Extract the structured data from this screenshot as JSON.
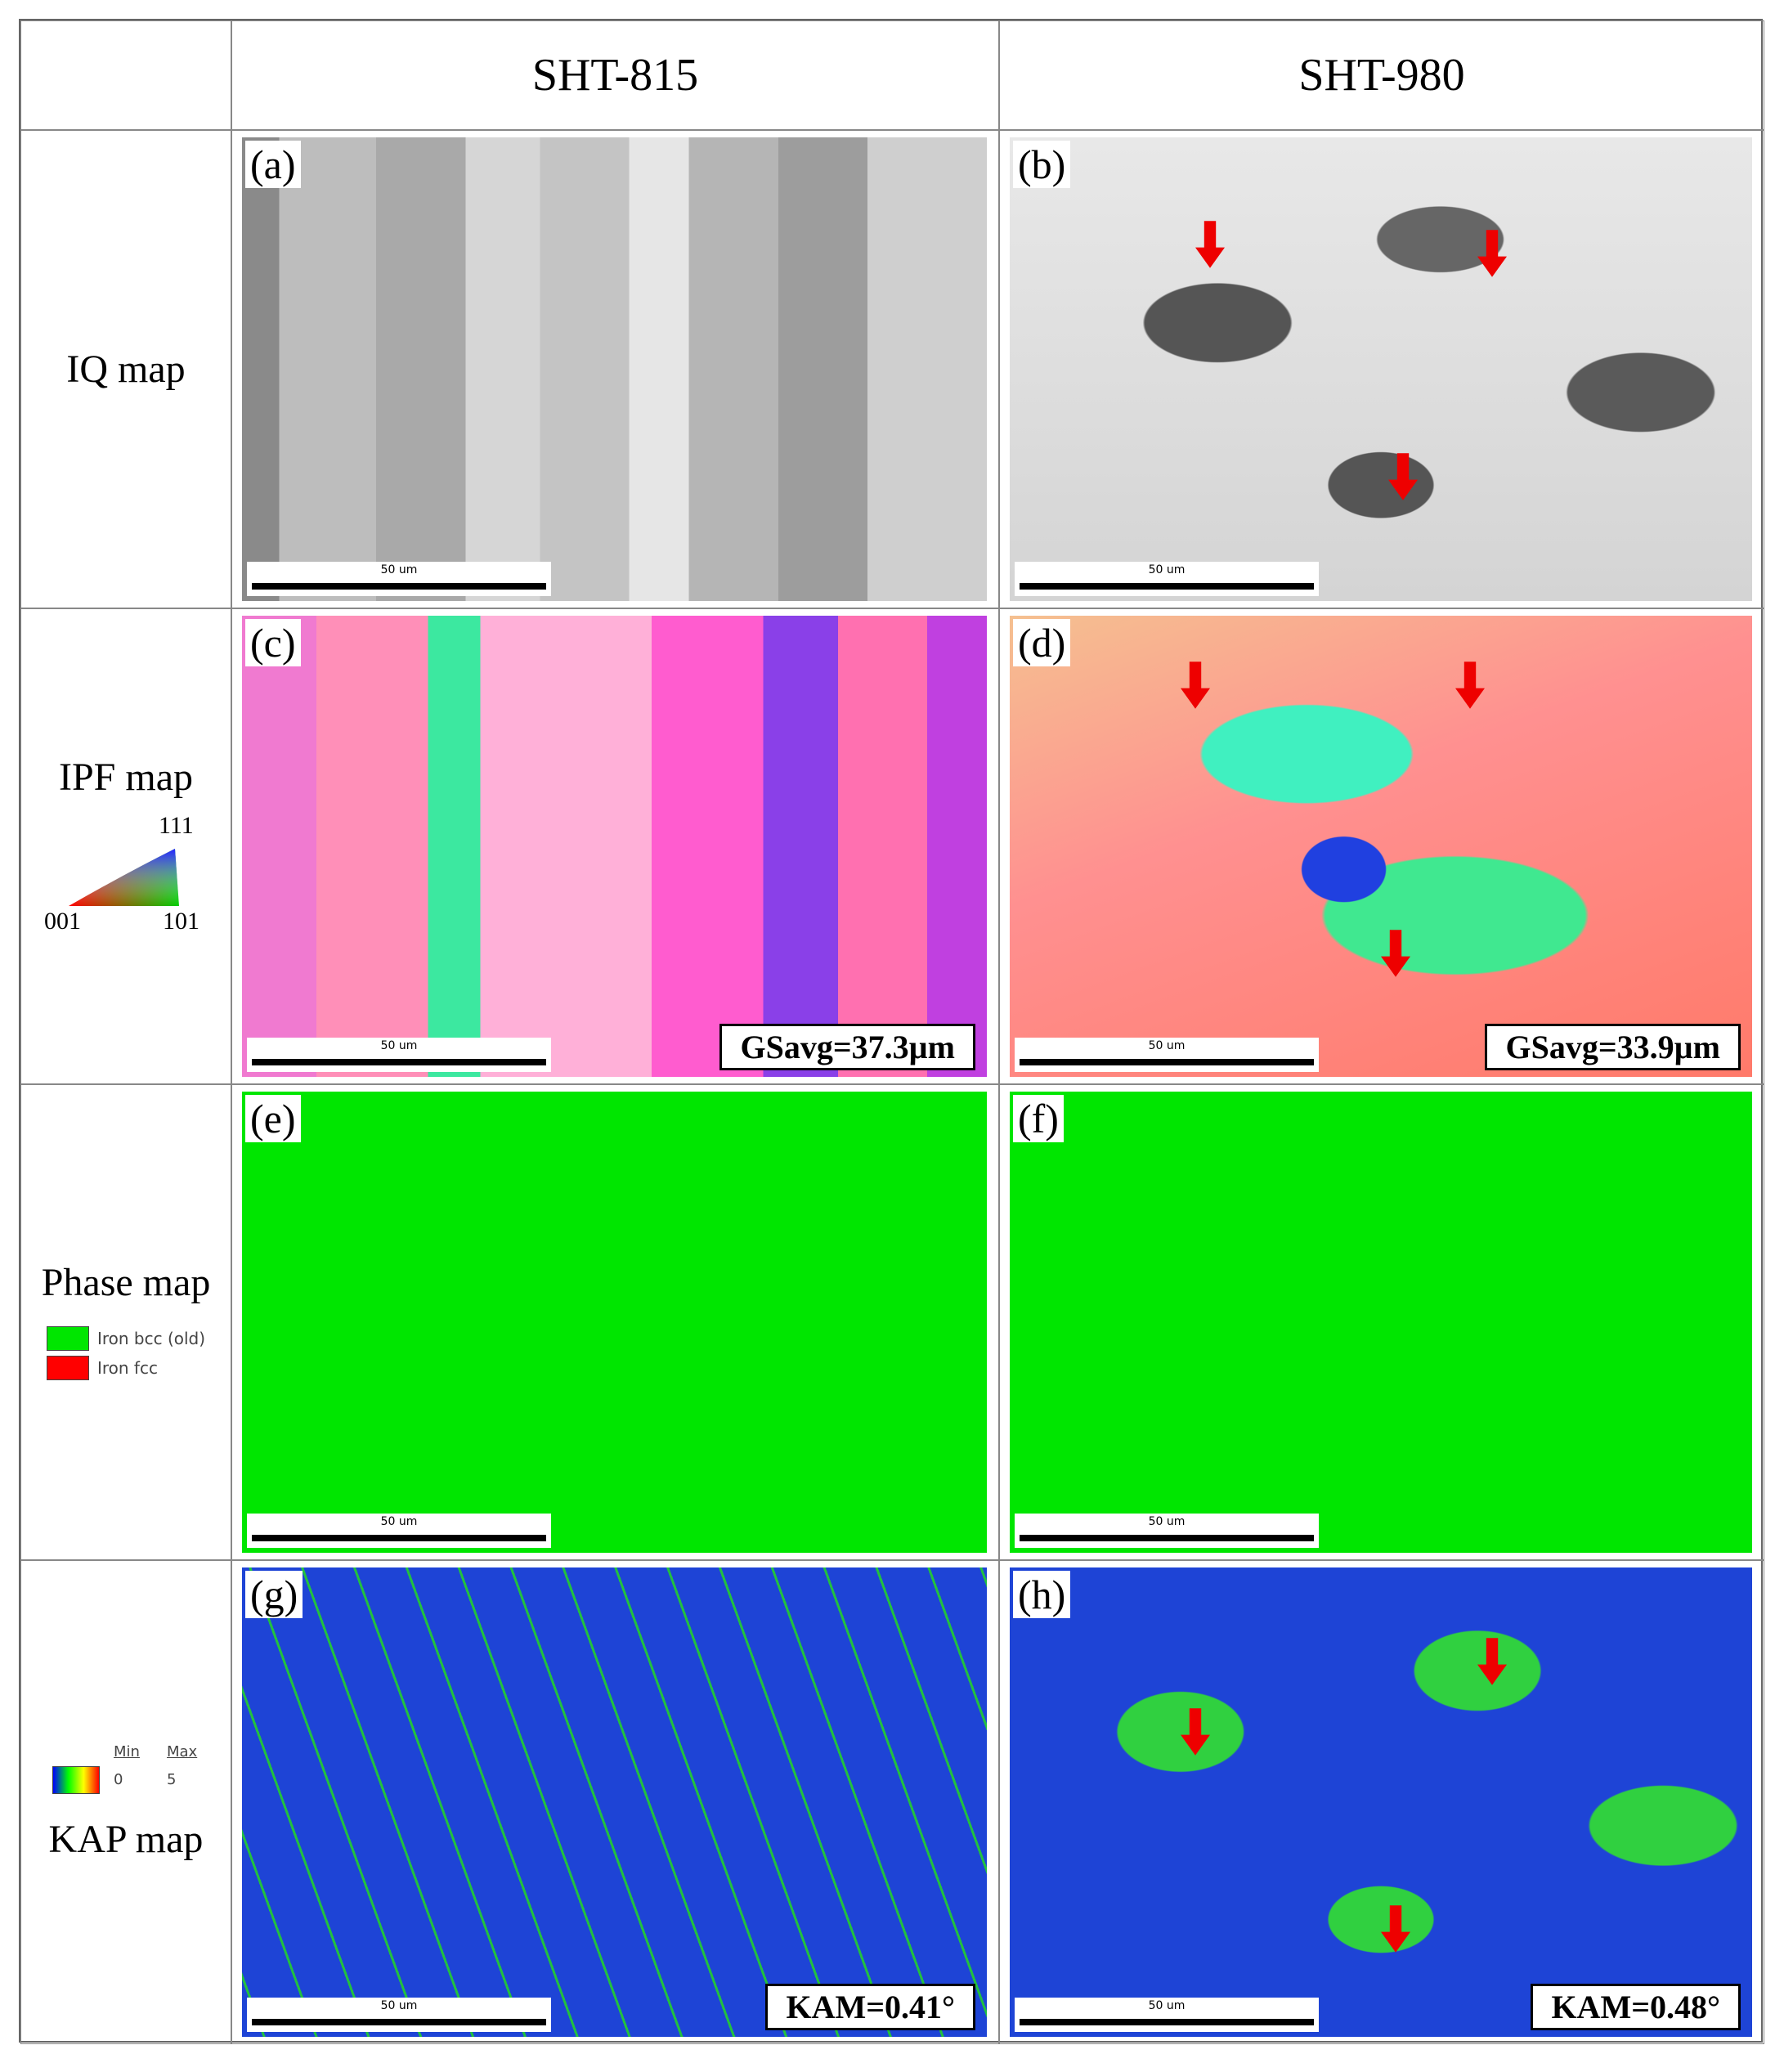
{
  "header": {
    "columns": [
      "SHT-815",
      "SHT-980"
    ]
  },
  "rows": [
    {
      "label": "IQ map",
      "panels": [
        {
          "label": "(a)",
          "scale_bar": "50 um"
        },
        {
          "label": "(b)",
          "scale_bar": "50 um"
        }
      ]
    },
    {
      "label": "IPF map",
      "legend": {
        "top": "111",
        "left": "001",
        "right": "101"
      },
      "panels": [
        {
          "label": "(c)",
          "scale_bar": "50 um",
          "annotation": "GSavg=37.3µm"
        },
        {
          "label": "(d)",
          "scale_bar": "50 um",
          "annotation": "GSavg=33.9µm"
        }
      ]
    },
    {
      "label": "Phase map",
      "legend": {
        "items": [
          "Iron bcc (old)",
          "Iron fcc"
        ]
      },
      "panels": [
        {
          "label": "(e)",
          "scale_bar": "50 um"
        },
        {
          "label": "(f)",
          "scale_bar": "50 um"
        }
      ]
    },
    {
      "label": "KAP map",
      "legend": {
        "min": "Min",
        "min_value": 0,
        "max": "Max",
        "max_value": 5
      },
      "panels": [
        {
          "label": "(g)",
          "scale_bar": "50 um",
          "annotation": "KAM=0.41°"
        },
        {
          "label": "(h)",
          "scale_bar": "50 um",
          "annotation": "KAM=0.48°"
        }
      ]
    }
  ]
}
